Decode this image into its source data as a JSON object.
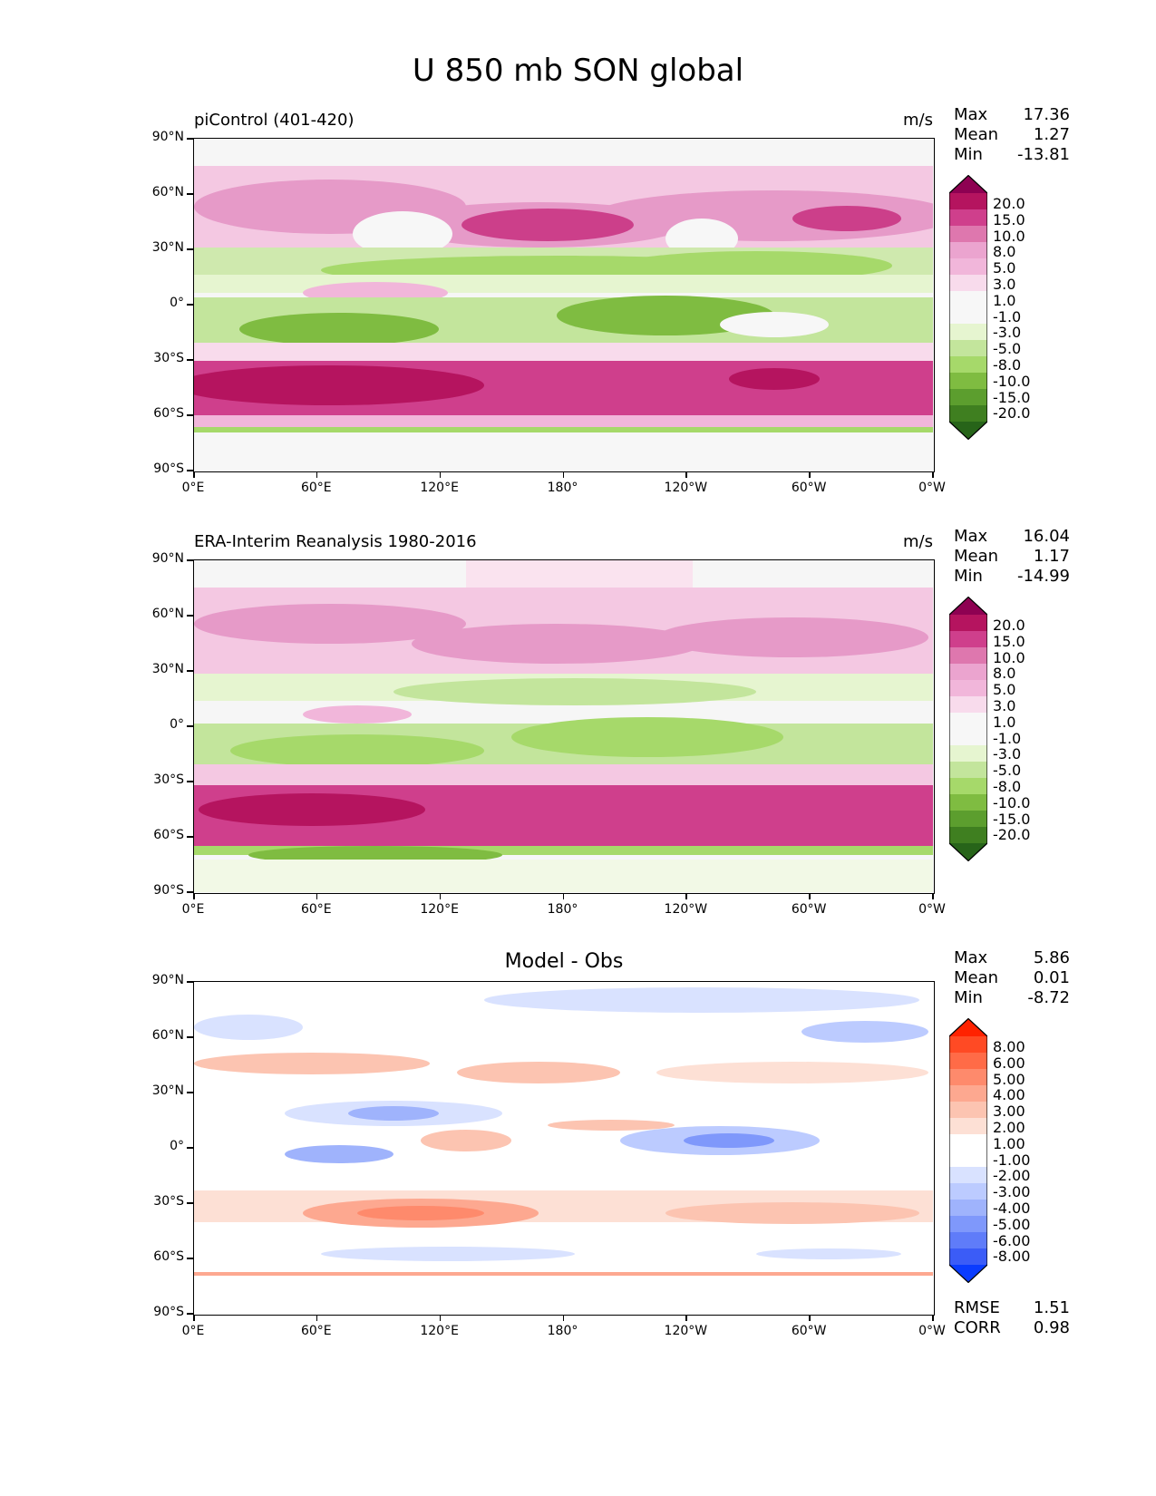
{
  "title": "U 850 mb SON global",
  "axes": {
    "lat_ticks": [
      "90°N",
      "60°N",
      "30°N",
      "0°",
      "30°S",
      "60°S",
      "90°S"
    ],
    "lon_ticks": [
      "0°E",
      "60°E",
      "120°E",
      "180°",
      "120°W",
      "60°W",
      "0°W"
    ]
  },
  "panels": [
    {
      "left_label": "piControl (401-420)",
      "units": "m/s",
      "center_title": "",
      "stats": {
        "max_label": "Max",
        "max": "17.36",
        "mean_label": "Mean",
        "mean": "1.27",
        "min_label": "Min",
        "min": "-13.81"
      },
      "colorbar": {
        "labels": [
          "20.0",
          "15.0",
          "10.0",
          "8.0",
          "5.0",
          "3.0",
          "1.0",
          "-1.0",
          "-3.0",
          "-5.0",
          "-8.0",
          "-10.0",
          "-15.0",
          "-20.0"
        ],
        "colors": [
          "#8e0152",
          "#b5145f",
          "#cf3f8c",
          "#de77ae",
          "#eba4cf",
          "#f1b6da",
          "#f8dbec",
          "#f7f7f7",
          "#f7f7f7",
          "#e6f5d0",
          "#c3e59c",
          "#a6d96a",
          "#7fbc41",
          "#5c9e2e",
          "#3f7f20",
          "#276419"
        ]
      }
    },
    {
      "left_label": "ERA-Interim Reanalysis 1980-2016",
      "units": "m/s",
      "center_title": "",
      "stats": {
        "max_label": "Max",
        "max": "16.04",
        "mean_label": "Mean",
        "mean": "1.17",
        "min_label": "Min",
        "min": "-14.99"
      },
      "colorbar": {
        "labels": [
          "20.0",
          "15.0",
          "10.0",
          "8.0",
          "5.0",
          "3.0",
          "1.0",
          "-1.0",
          "-3.0",
          "-5.0",
          "-8.0",
          "-10.0",
          "-15.0",
          "-20.0"
        ],
        "colors": [
          "#8e0152",
          "#b5145f",
          "#cf3f8c",
          "#de77ae",
          "#eba4cf",
          "#f1b6da",
          "#f8dbec",
          "#f7f7f7",
          "#f7f7f7",
          "#e6f5d0",
          "#c3e59c",
          "#a6d96a",
          "#7fbc41",
          "#5c9e2e",
          "#3f7f20",
          "#276419"
        ]
      }
    },
    {
      "left_label": "",
      "units": "",
      "center_title": "Model - Obs",
      "stats": {
        "max_label": "Max",
        "max": "5.86",
        "mean_label": "Mean",
        "mean": "0.01",
        "min_label": "Min",
        "min": "-8.72"
      },
      "colorbar": {
        "labels": [
          "8.00",
          "6.00",
          "5.00",
          "4.00",
          "3.00",
          "2.00",
          "1.00",
          "-1.00",
          "-2.00",
          "-3.00",
          "-4.00",
          "-5.00",
          "-6.00",
          "-8.00"
        ],
        "colors": [
          "#ff2200",
          "#ff4a24",
          "#ff6b47",
          "#fe8a6c",
          "#fda890",
          "#fcc4b1",
          "#fde0d5",
          "#ffffff",
          "#ffffff",
          "#d9e2ff",
          "#bccbff",
          "#9fb3fc",
          "#7f98fb",
          "#5f7cf9",
          "#3b5cf7",
          "#0a3cff"
        ]
      },
      "rmse_label": "RMSE",
      "rmse": "1.51",
      "corr_label": "CORR",
      "corr": "0.98"
    }
  ]
}
